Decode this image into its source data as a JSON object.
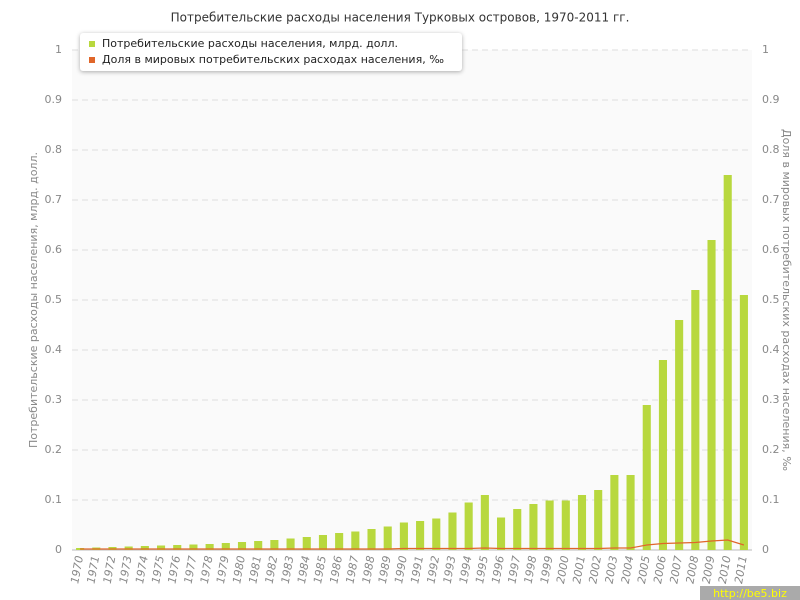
{
  "chart_data": {
    "type": "bar",
    "title": "Потребительские расходы населения Турковых островов, 1970-2011 гг.",
    "y_label": "Потребительские расходы населения, млрд. долл.",
    "y2_label": "Доля в мировых потребительских расходах населения, ‰",
    "watermark": "http://be5.biz",
    "categories": [
      "1970",
      "1971",
      "1972",
      "1973",
      "1974",
      "1975",
      "1976",
      "1977",
      "1978",
      "1979",
      "1980",
      "1981",
      "1982",
      "1983",
      "1984",
      "1985",
      "1986",
      "1987",
      "1988",
      "1989",
      "1990",
      "1991",
      "1992",
      "1993",
      "1994",
      "1995",
      "1996",
      "1997",
      "1998",
      "1999",
      "2000",
      "2001",
      "2002",
      "2003",
      "2004",
      "2005",
      "2006",
      "2007",
      "2008",
      "2009",
      "2010",
      "2011"
    ],
    "series": [
      {
        "name": "Потребительские расходы населения, млрд. долл.",
        "type": "bar",
        "color": "#b8d83e",
        "values": [
          0.004,
          0.005,
          0.006,
          0.007,
          0.008,
          0.009,
          0.01,
          0.011,
          0.012,
          0.014,
          0.016,
          0.018,
          0.02,
          0.023,
          0.026,
          0.03,
          0.034,
          0.037,
          0.042,
          0.047,
          0.055,
          0.058,
          0.063,
          0.075,
          0.095,
          0.11,
          0.065,
          0.082,
          0.092,
          0.099,
          0.099,
          0.11,
          0.12,
          0.15,
          0.15,
          0.29,
          0.38,
          0.46,
          0.52,
          0.62,
          0.75,
          0.51
        ]
      },
      {
        "name": "Доля в мировых потребительских расходах населения, ‰",
        "type": "line",
        "axis": "y2",
        "color": "#e0662a",
        "values": [
          0.002,
          0.002,
          0.002,
          0.002,
          0.002,
          0.002,
          0.002,
          0.002,
          0.002,
          0.002,
          0.002,
          0.002,
          0.002,
          0.002,
          0.002,
          0.002,
          0.002,
          0.002,
          0.002,
          0.002,
          0.003,
          0.003,
          0.003,
          0.003,
          0.003,
          0.004,
          0.003,
          0.003,
          0.003,
          0.003,
          0.003,
          0.003,
          0.003,
          0.004,
          0.004,
          0.01,
          0.013,
          0.014,
          0.015,
          0.018,
          0.02,
          0.01
        ]
      }
    ],
    "ylim": [
      0,
      1
    ],
    "yticks": [
      0,
      0.1,
      0.2,
      0.3,
      0.4,
      0.5,
      0.6,
      0.7,
      0.8,
      0.9,
      1
    ],
    "y2lim": [
      0,
      1
    ],
    "y2ticks": [
      0,
      0.1,
      0.2,
      0.3,
      0.4,
      0.5,
      0.6,
      0.7,
      0.8,
      0.9,
      1
    ],
    "grid": true,
    "legend": "top-left"
  }
}
